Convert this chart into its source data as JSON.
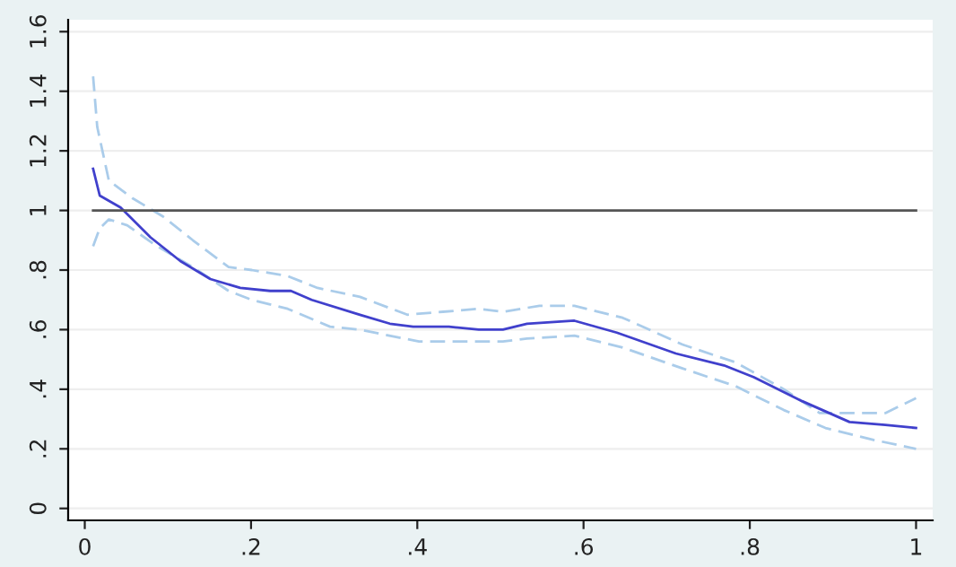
{
  "chart_data": {
    "type": "line",
    "xlim": [
      -0.02,
      1.02
    ],
    "ylim": [
      -0.04,
      1.64
    ],
    "xticks": [
      0,
      {
        "value": 0.2,
        "label": ".2"
      },
      {
        "value": 0.4,
        "label": ".4"
      },
      {
        "value": 0.6,
        "label": ".6"
      },
      {
        "value": 0.8,
        "label": ".8"
      },
      1
    ],
    "yticks": [
      0,
      {
        "value": 0.2,
        "label": ".2"
      },
      {
        "value": 0.4,
        "label": ".4"
      },
      {
        "value": 0.6,
        "label": ".6"
      },
      {
        "value": 0.8,
        "label": ".8"
      },
      1,
      1.2,
      1.4,
      1.6
    ],
    "grid": "y",
    "legend": false,
    "series": [
      {
        "color": "#aaccea",
        "line_style": "dashed",
        "x": [
          0.01,
          0.015,
          0.029,
          0.058,
          0.094,
          0.13,
          0.173,
          0.201,
          0.244,
          0.28,
          0.331,
          0.388,
          0.431,
          0.474,
          0.503,
          0.547,
          0.589,
          0.647,
          0.719,
          0.783,
          0.841,
          0.884,
          0.927,
          0.963,
          1.0
        ],
        "values": [
          1.45,
          1.28,
          1.1,
          1.04,
          0.98,
          0.9,
          0.81,
          0.8,
          0.78,
          0.74,
          0.71,
          0.65,
          0.66,
          0.67,
          0.66,
          0.68,
          0.68,
          0.64,
          0.55,
          0.49,
          0.4,
          0.32,
          0.32,
          0.32,
          0.37
        ]
      },
      {
        "color": "#aaccea",
        "line_style": "dashed",
        "x": [
          0.01,
          0.018,
          0.029,
          0.051,
          0.087,
          0.13,
          0.173,
          0.201,
          0.244,
          0.295,
          0.331,
          0.402,
          0.446,
          0.503,
          0.532,
          0.589,
          0.647,
          0.719,
          0.783,
          0.841,
          0.891,
          0.949,
          1.0
        ],
        "values": [
          0.88,
          0.94,
          0.97,
          0.95,
          0.88,
          0.81,
          0.73,
          0.7,
          0.67,
          0.61,
          0.6,
          0.56,
          0.56,
          0.56,
          0.57,
          0.58,
          0.54,
          0.47,
          0.41,
          0.33,
          0.27,
          0.23,
          0.2
        ]
      },
      {
        "color": "#4040cc",
        "line_style": "solid",
        "x": [
          0.01,
          0.018,
          0.043,
          0.079,
          0.115,
          0.151,
          0.187,
          0.223,
          0.248,
          0.273,
          0.331,
          0.367,
          0.395,
          0.438,
          0.474,
          0.503,
          0.532,
          0.589,
          0.64,
          0.711,
          0.769,
          0.805,
          0.863,
          0.92,
          0.963,
          1.0
        ],
        "values": [
          1.14,
          1.05,
          1.01,
          0.91,
          0.83,
          0.77,
          0.74,
          0.73,
          0.73,
          0.7,
          0.65,
          0.62,
          0.61,
          0.61,
          0.6,
          0.6,
          0.62,
          0.63,
          0.59,
          0.52,
          0.48,
          0.44,
          0.36,
          0.29,
          0.28,
          0.27
        ]
      },
      {
        "color": "#555555",
        "line_style": "solid",
        "x": [
          0.01,
          1.0
        ],
        "values": [
          1,
          1
        ]
      }
    ]
  }
}
